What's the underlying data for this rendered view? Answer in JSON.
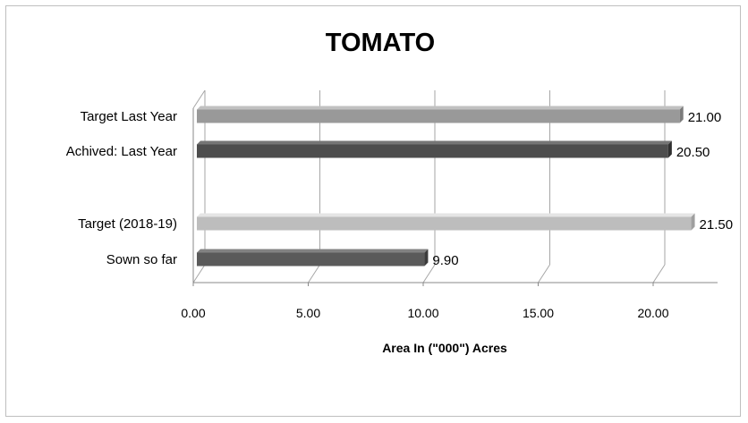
{
  "chart_data": {
    "type": "bar",
    "orientation": "horizontal",
    "style": "3d",
    "title": "TOMATO",
    "xlabel": "Area In (\"000\") Acres",
    "ylabel": "",
    "xlim": [
      0,
      22.5
    ],
    "x_ticks": [
      "0.00",
      "5.00",
      "10.00",
      "15.00",
      "20.00"
    ],
    "grid": true,
    "legend": "none",
    "categories": [
      "Target  Last Year",
      "Achived: Last Year",
      "Target (2018-19)",
      "Sown so far"
    ],
    "values": [
      21.0,
      20.5,
      21.5,
      9.9
    ],
    "value_labels": [
      "21.00",
      "20.50",
      "21.50",
      "9.90"
    ],
    "bar_colors": [
      "#999999",
      "#4d4d4d",
      "#bdbdbd",
      "#5a5a5a"
    ],
    "grid_color": "#a6a6a6"
  }
}
